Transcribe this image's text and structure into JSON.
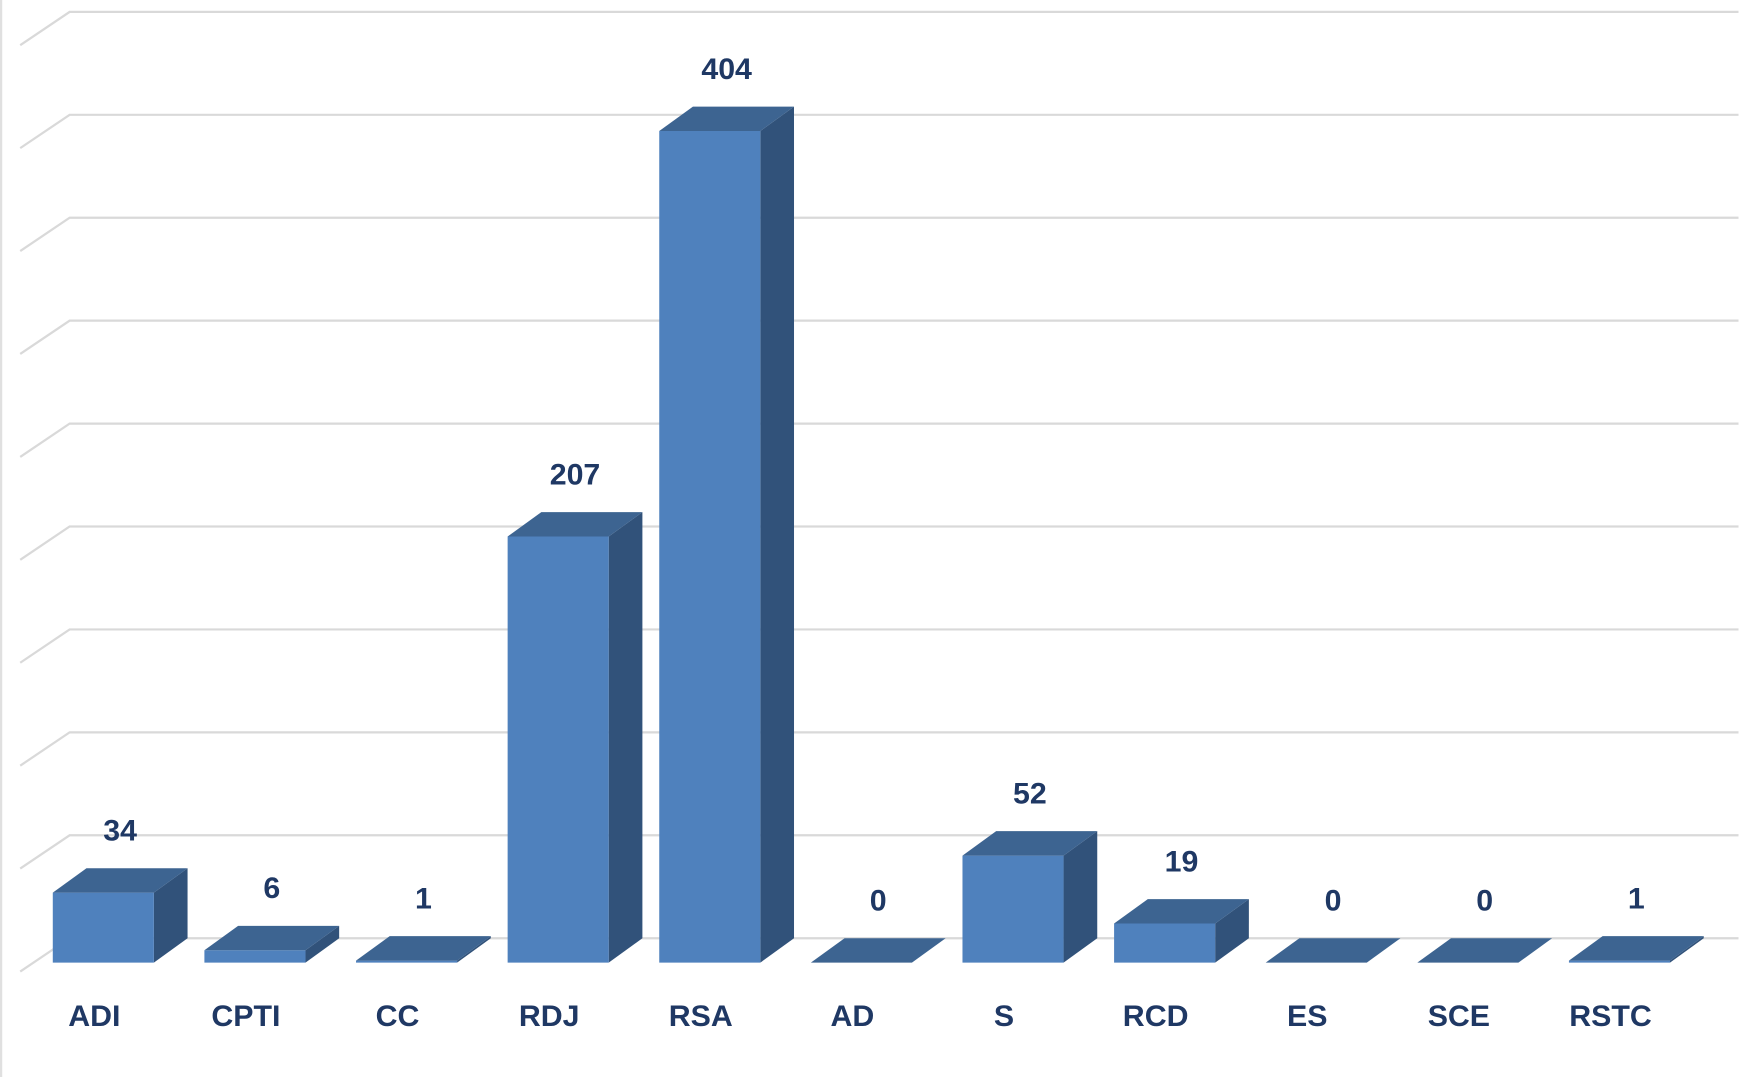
{
  "chart_data": {
    "type": "bar3d",
    "categories": [
      "ADI",
      "CPTI",
      "CC",
      "RDJ",
      "RSA",
      "AD",
      "S",
      "RCD",
      "ES",
      "SCE",
      "RSTC"
    ],
    "values": [
      34,
      6,
      1,
      207,
      404,
      0,
      52,
      19,
      0,
      0,
      1
    ],
    "color": "#4f81bd",
    "side_color": "#31527a",
    "top_color": "#3d6491",
    "ylim": [
      0,
      450
    ],
    "yticks": [
      0,
      50,
      100,
      150,
      200,
      250,
      300,
      350,
      400,
      450
    ],
    "grid": true
  }
}
